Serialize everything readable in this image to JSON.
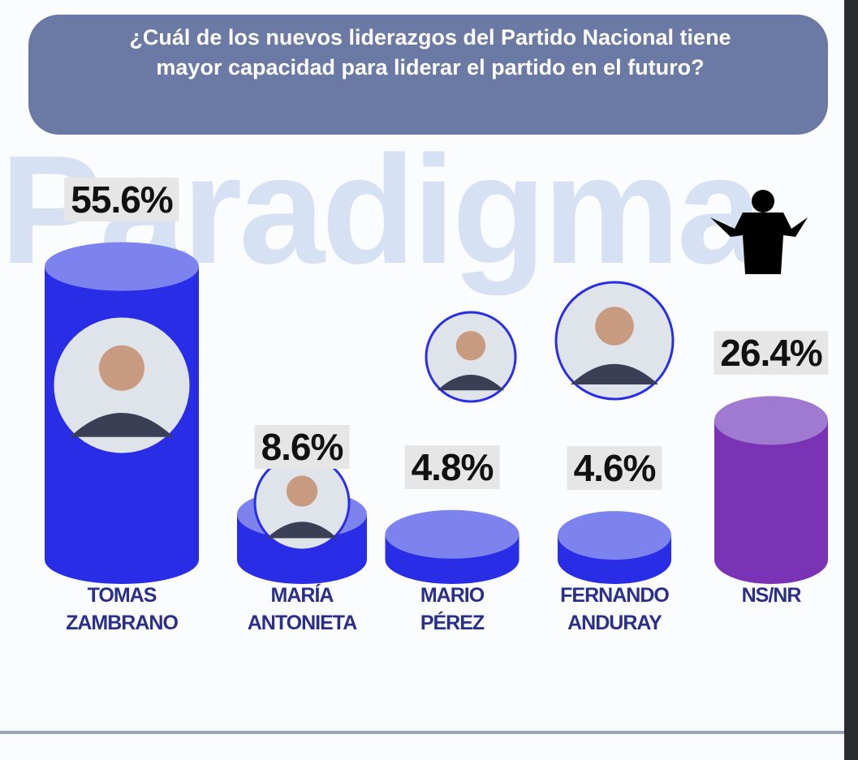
{
  "chart_data": {
    "type": "cylinder",
    "title": "¿Cuál de los nuevos liderazgos del Partido Nacional tiene mayor capacidad para liderar el partido en el futuro?",
    "watermark": "Paradigma",
    "categories": [
      "TOMAS ZAMBRANO",
      "MARÍA ANTONIETA",
      "MARIO PÉREZ",
      "FERNANDO ANDURAY",
      "NS/NR"
    ],
    "values": [
      55.6,
      8.6,
      4.8,
      4.6,
      26.4
    ],
    "value_labels": [
      "55.6%",
      "8.6%",
      "4.8%",
      "4.6%",
      "26.4%"
    ],
    "colors": [
      "#2a2de6",
      "#2a2de6",
      "#2a2de6",
      "#2a2de6",
      "#7a33b4"
    ],
    "cap_colors": [
      "#7c82ee",
      "#7c82ee",
      "#7c82ee",
      "#7c82ee",
      "#a07ad0"
    ]
  }
}
